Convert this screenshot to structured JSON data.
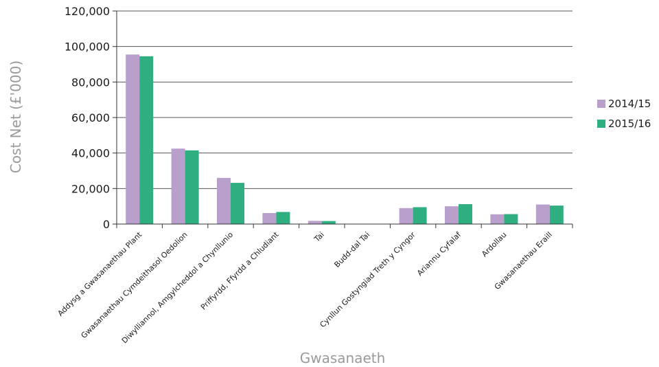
{
  "chart_data": {
    "type": "bar",
    "title": "",
    "xlabel": "Gwasanaeth",
    "ylabel": "Cost Net (£'000)",
    "ylim": [
      0,
      120000
    ],
    "yticks": [
      0,
      20000,
      40000,
      60000,
      80000,
      100000,
      120000
    ],
    "ytick_labels": [
      "0",
      "20,000",
      "40,000",
      "60,000",
      "80,000",
      "100,000",
      "120,000"
    ],
    "grid": true,
    "legend_position": "right",
    "categories": [
      "Addysg a Gwasanaethau Plant",
      "Gwasanaethau Cymdeithasol Oedolion",
      "Diwylliannol, Amgylcheddol a Chynllunio",
      "Priffyrdd, Ffyrdd a Chludiant",
      "Tai",
      "Budd-dal Tai",
      "Cynllun Gostyngiad Treth y Cyngor",
      "Ariannu Cyfalaf",
      "Ardollau",
      "Gwasanaethau Eraill"
    ],
    "series": [
      {
        "name": "2014/15",
        "color": "#b9a0cc",
        "values": [
          95500,
          42500,
          26000,
          6200,
          1800,
          0,
          9000,
          10000,
          5500,
          11000
        ]
      },
      {
        "name": "2015/16",
        "color": "#2fae80",
        "values": [
          94500,
          41500,
          23200,
          6800,
          1700,
          0,
          9500,
          11200,
          5600,
          10400
        ]
      }
    ]
  }
}
